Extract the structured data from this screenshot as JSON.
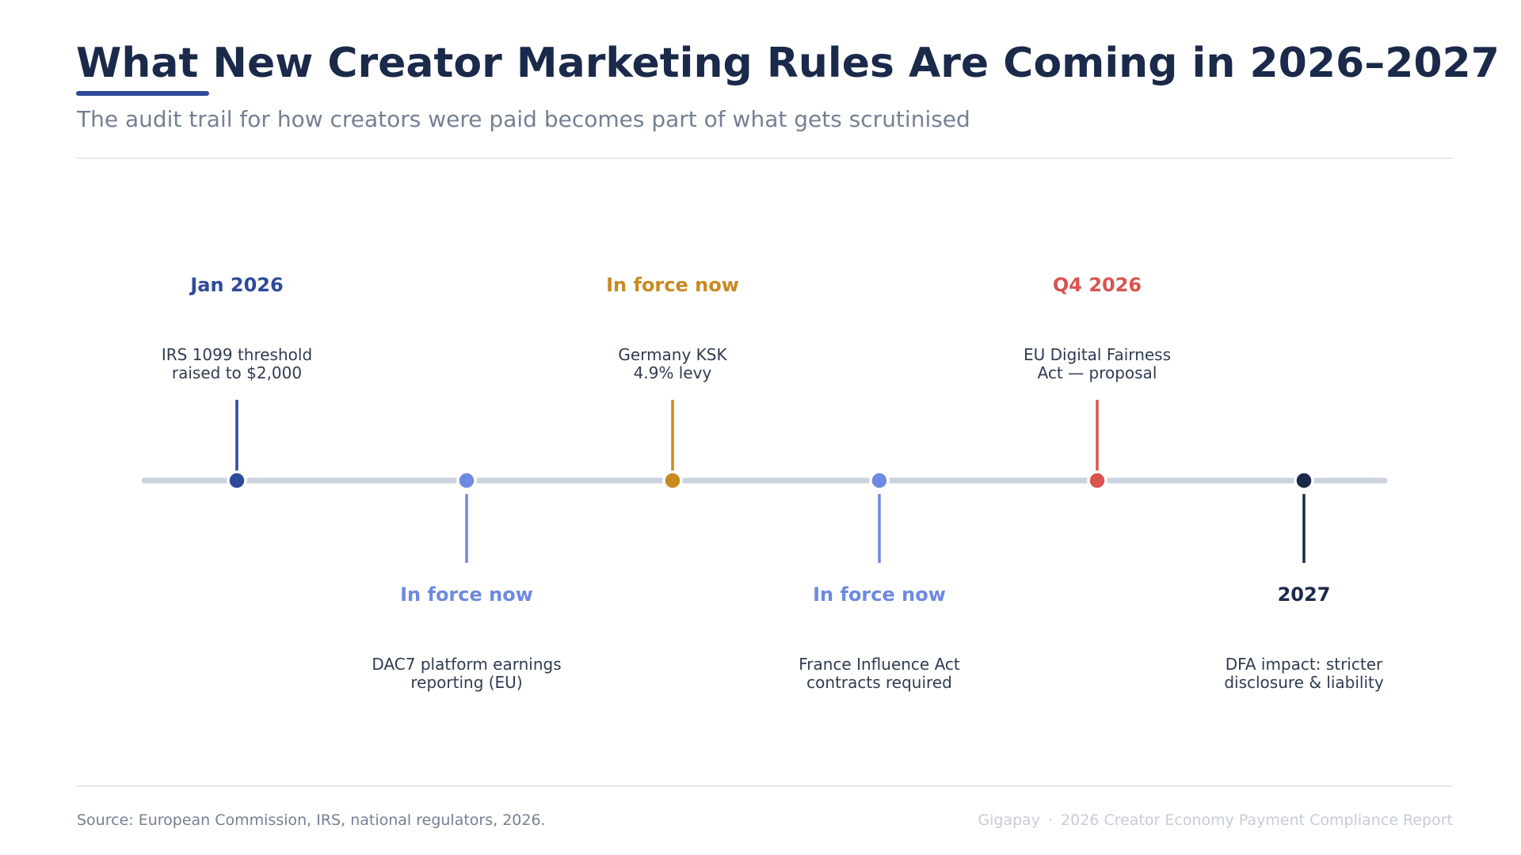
{
  "header": {
    "title": "What New Creator Marketing Rules Are Coming in 2026–2027",
    "subtitle": "The audit trail for how creators were paid becomes part of what gets scrutinised"
  },
  "timeline": {
    "events": [
      {
        "date": "Jan 2026",
        "label_lines": [
          "IRS 1099 threshold",
          "raised to $2,000"
        ],
        "side": "above",
        "color": "#2e4a9a"
      },
      {
        "date": "In force now",
        "label_lines": [
          "DAC7 platform earnings",
          "reporting (EU)"
        ],
        "side": "below",
        "color": "#6d8ae0"
      },
      {
        "date": "In force now",
        "label_lines": [
          "Germany KSK",
          "4.9% levy"
        ],
        "side": "above",
        "color": "#c98a22"
      },
      {
        "date": "In force now",
        "label_lines": [
          "France Influence Act",
          "contracts required"
        ],
        "side": "below",
        "color": "#6d8ae0"
      },
      {
        "date": "Q4 2026",
        "label_lines": [
          "EU Digital Fairness",
          "Act — proposal"
        ],
        "side": "above",
        "color": "#d9534f"
      },
      {
        "date": "2027",
        "label_lines": [
          "DFA impact: stricter",
          "disclosure & liability"
        ],
        "side": "below",
        "color": "#1b2a4a"
      }
    ],
    "axis_color": "#cbd2de",
    "label_text_color": "#2f3b52"
  },
  "footer": {
    "source": "Source: European Commission, IRS, national regulators, 2026.",
    "brand": "Gigapay",
    "separator": "·",
    "report": "2026 Creator Economy Payment Compliance Report"
  }
}
